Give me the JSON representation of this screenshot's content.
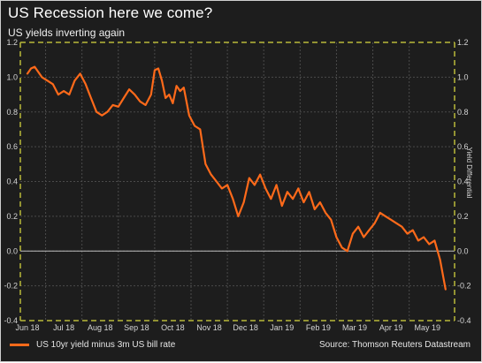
{
  "header": {
    "title": "US Recession here we come?",
    "subtitle": "US yields inverting again"
  },
  "legend": {
    "label": "US 10yr yield minus 3m US bill rate",
    "color": "#ff6a1a"
  },
  "source": "Source: Thomson Reuters Datastream",
  "chart_data": {
    "type": "line",
    "title": "US Recession here we come?",
    "subtitle": "US yields inverting again",
    "ylabel": "Yield Differential",
    "ylim": [
      -0.4,
      1.2
    ],
    "yticks": [
      -0.4,
      -0.2,
      0.0,
      0.2,
      0.4,
      0.6,
      0.8,
      1.0,
      1.2
    ],
    "ytick_labels": [
      "-0.4",
      "-0.2",
      "0.0",
      "0.2",
      "0.4",
      "0.6",
      "0.8",
      "1.0",
      "1.2"
    ],
    "xticks": [
      "Jun 18",
      "Jul 18",
      "Aug 18",
      "Sep 18",
      "Oct 18",
      "Nov 18",
      "Dec 18",
      "Jan 19",
      "Feb 19",
      "Mar 19",
      "Apr 19",
      "May 19"
    ],
    "grid": true,
    "series": [
      {
        "name": "US 10yr yield minus 3m US bill rate",
        "color": "#ff6a1a",
        "x": [
          0.0,
          0.1,
          0.2,
          0.3,
          0.4,
          0.55,
          0.7,
          0.85,
          1.0,
          1.15,
          1.3,
          1.45,
          1.6,
          1.75,
          1.9,
          2.05,
          2.2,
          2.35,
          2.5,
          2.65,
          2.8,
          2.95,
          3.1,
          3.25,
          3.4,
          3.5,
          3.6,
          3.7,
          3.8,
          3.9,
          4.0,
          4.1,
          4.2,
          4.3,
          4.45,
          4.6,
          4.75,
          4.9,
          5.05,
          5.2,
          5.35,
          5.5,
          5.65,
          5.8,
          5.95,
          6.1,
          6.25,
          6.4,
          6.55,
          6.7,
          6.85,
          7.0,
          7.15,
          7.3,
          7.45,
          7.6,
          7.75,
          7.9,
          8.05,
          8.2,
          8.35,
          8.5,
          8.65,
          8.8,
          8.95,
          9.1,
          9.25,
          9.4,
          9.55,
          9.7,
          9.85,
          10.0,
          10.15,
          10.3,
          10.45,
          10.6,
          10.75,
          10.9,
          11.05,
          11.2,
          11.35,
          11.5
        ],
        "values": [
          1.02,
          1.05,
          1.06,
          1.03,
          1.0,
          0.98,
          0.96,
          0.9,
          0.92,
          0.9,
          0.98,
          1.02,
          0.96,
          0.88,
          0.8,
          0.78,
          0.8,
          0.84,
          0.83,
          0.88,
          0.93,
          0.9,
          0.86,
          0.84,
          0.9,
          1.04,
          1.05,
          0.98,
          0.88,
          0.9,
          0.85,
          0.95,
          0.92,
          0.94,
          0.78,
          0.72,
          0.7,
          0.5,
          0.44,
          0.4,
          0.36,
          0.38,
          0.3,
          0.2,
          0.28,
          0.42,
          0.38,
          0.44,
          0.36,
          0.3,
          0.38,
          0.26,
          0.34,
          0.3,
          0.36,
          0.28,
          0.34,
          0.24,
          0.28,
          0.22,
          0.18,
          0.08,
          0.02,
          0.0,
          0.1,
          0.14,
          0.08,
          0.12,
          0.16,
          0.22,
          0.2,
          0.18,
          0.16,
          0.14,
          0.1,
          0.12,
          0.06,
          0.08,
          0.04,
          0.06,
          -0.05,
          -0.22
        ]
      }
    ]
  }
}
